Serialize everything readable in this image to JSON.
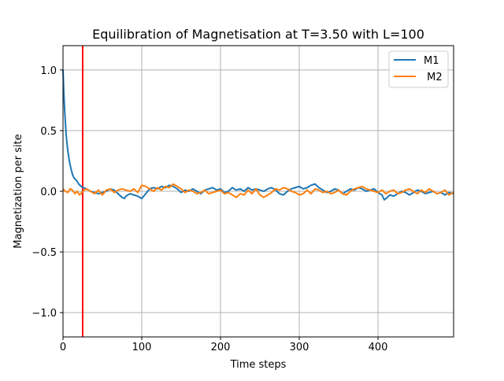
{
  "chart_data": {
    "type": "line",
    "title": "Equilibration of Magnetisation at T=3.50 with L=100",
    "xlabel": "Time steps",
    "ylabel": "Magnetization per site",
    "xlim": [
      0,
      496
    ],
    "ylim": [
      -1.2,
      1.2
    ],
    "x_ticks": [
      0,
      100,
      200,
      300,
      400
    ],
    "x_tick_labels": [
      "0",
      "100",
      "200",
      "300",
      "400"
    ],
    "y_ticks": [
      1.0,
      0.5,
      0.0,
      -0.5,
      -1.0
    ],
    "y_tick_labels": [
      "1.0",
      "0.5",
      "0.0",
      "−0.5",
      "−1.0"
    ],
    "grid": true,
    "legend_position": "top-right",
    "vertical_line": {
      "x": 25,
      "color": "#ff0000"
    },
    "series": [
      {
        "name": "M1",
        "color": "#1f77b4",
        "x": [
          0,
          1,
          2,
          3,
          4,
          5,
          6,
          8,
          10,
          12,
          14,
          17,
          20,
          23,
          26,
          30,
          35,
          40,
          45,
          50,
          55,
          60,
          65,
          70,
          75,
          78,
          80,
          85,
          90,
          95,
          100,
          105,
          110,
          115,
          120,
          125,
          130,
          135,
          140,
          145,
          150,
          155,
          160,
          165,
          170,
          175,
          180,
          185,
          190,
          195,
          200,
          205,
          210,
          215,
          220,
          225,
          230,
          235,
          240,
          245,
          250,
          255,
          260,
          265,
          270,
          275,
          280,
          285,
          290,
          295,
          300,
          305,
          310,
          315,
          320,
          325,
          330,
          335,
          340,
          345,
          350,
          355,
          360,
          365,
          370,
          375,
          380,
          385,
          390,
          395,
          400,
          405,
          408,
          412,
          415,
          420,
          425,
          430,
          435,
          440,
          445,
          450,
          455,
          460,
          465,
          470,
          475,
          480,
          485,
          490,
          496
        ],
        "y": [
          1.0,
          0.82,
          0.68,
          0.57,
          0.47,
          0.4,
          0.34,
          0.25,
          0.19,
          0.14,
          0.11,
          0.09,
          0.06,
          0.04,
          0.03,
          0.02,
          0.0,
          -0.01,
          -0.02,
          -0.01,
          0.0,
          0.02,
          0.01,
          -0.02,
          -0.05,
          -0.06,
          -0.04,
          -0.02,
          -0.03,
          -0.04,
          -0.06,
          -0.02,
          0.02,
          0.03,
          0.02,
          0.04,
          0.03,
          0.05,
          0.04,
          0.02,
          -0.01,
          0.01,
          0.0,
          0.02,
          0.0,
          -0.02,
          0.01,
          0.02,
          0.03,
          0.01,
          0.02,
          -0.01,
          0.0,
          0.03,
          0.01,
          0.02,
          0.0,
          0.03,
          0.01,
          0.02,
          0.01,
          0.0,
          0.02,
          0.03,
          0.01,
          -0.02,
          -0.03,
          0.0,
          0.02,
          0.03,
          0.04,
          0.02,
          0.03,
          0.05,
          0.06,
          0.03,
          0.01,
          -0.01,
          0.0,
          0.02,
          0.01,
          -0.02,
          0.0,
          0.02,
          0.01,
          0.03,
          0.02,
          0.0,
          0.01,
          0.02,
          -0.01,
          -0.03,
          -0.07,
          -0.05,
          -0.03,
          -0.04,
          -0.02,
          0.0,
          -0.01,
          -0.03,
          -0.01,
          0.01,
          0.0,
          -0.02,
          -0.01,
          0.0,
          -0.02,
          -0.01,
          -0.03,
          -0.01,
          -0.02
        ]
      },
      {
        "name": " M2",
        "color": "#ff7f0e",
        "x": [
          0,
          3,
          6,
          9,
          12,
          15,
          18,
          21,
          24,
          27,
          30,
          35,
          40,
          45,
          50,
          55,
          60,
          65,
          70,
          75,
          80,
          85,
          90,
          95,
          100,
          105,
          110,
          115,
          120,
          125,
          130,
          135,
          140,
          145,
          150,
          155,
          160,
          165,
          170,
          175,
          180,
          185,
          190,
          195,
          200,
          205,
          210,
          215,
          220,
          225,
          230,
          235,
          240,
          245,
          250,
          255,
          260,
          265,
          270,
          275,
          280,
          285,
          290,
          295,
          300,
          305,
          310,
          315,
          320,
          325,
          330,
          335,
          340,
          345,
          350,
          355,
          360,
          365,
          370,
          375,
          380,
          385,
          390,
          395,
          400,
          405,
          410,
          415,
          420,
          425,
          430,
          435,
          440,
          445,
          450,
          455,
          460,
          465,
          470,
          475,
          480,
          485,
          490,
          496
        ],
        "y": [
          0.02,
          0.0,
          -0.01,
          0.02,
          0.01,
          -0.02,
          0.0,
          -0.03,
          -0.01,
          0.01,
          0.02,
          0.0,
          -0.02,
          0.01,
          -0.03,
          0.01,
          0.02,
          -0.01,
          0.01,
          0.02,
          0.01,
          0.0,
          0.02,
          -0.01,
          0.05,
          0.04,
          0.02,
          0.0,
          0.03,
          0.01,
          0.04,
          0.03,
          0.06,
          0.04,
          0.02,
          -0.01,
          0.01,
          0.0,
          -0.02,
          -0.01,
          0.01,
          -0.02,
          -0.01,
          0.0,
          0.01,
          -0.02,
          -0.01,
          -0.03,
          -0.05,
          -0.02,
          -0.03,
          0.01,
          -0.02,
          0.02,
          -0.03,
          -0.05,
          -0.03,
          -0.01,
          0.02,
          0.01,
          0.03,
          0.02,
          0.0,
          -0.01,
          -0.03,
          -0.02,
          0.01,
          -0.02,
          0.02,
          0.01,
          -0.01,
          0.0,
          -0.02,
          -0.01,
          0.01,
          -0.02,
          -0.03,
          0.0,
          0.02,
          0.03,
          0.04,
          0.02,
          0.01,
          0.0,
          -0.01,
          0.01,
          -0.02,
          0.0,
          0.01,
          -0.02,
          -0.01,
          0.01,
          0.02,
          0.0,
          -0.02,
          0.01,
          -0.01,
          0.02,
          0.0,
          -0.02,
          -0.01,
          0.01,
          -0.03,
          -0.01
        ]
      }
    ]
  }
}
